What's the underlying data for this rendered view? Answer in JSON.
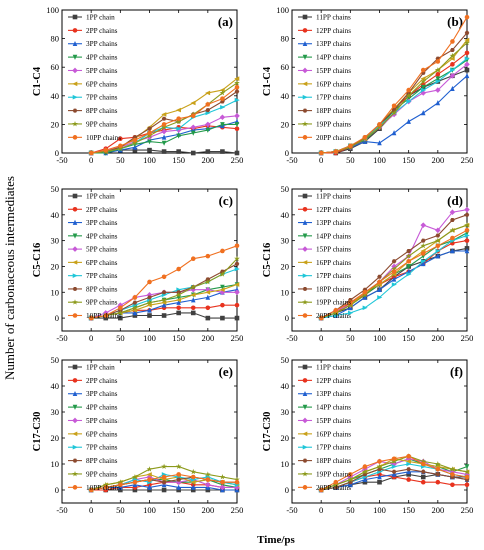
{
  "figure": {
    "shared_ylabel": "Number of carbonaceous intermediates",
    "shared_xlabel": "Time/ps"
  },
  "series_colors": [
    "#404040",
    "#e8321e",
    "#1f5fd0",
    "#239a4a",
    "#c75ad7",
    "#c9a11a",
    "#1fc6d8",
    "#8c4a2f",
    "#8c9a1c",
    "#f07020"
  ],
  "chart_data": [
    {
      "type": "line",
      "id": "a",
      "panel_label": "(a)",
      "ylabel": "C1-C4",
      "xlim": [
        -50,
        250
      ],
      "ylim": [
        0,
        100
      ],
      "xticks": [
        -50,
        0,
        50,
        100,
        150,
        200,
        250
      ],
      "yticks": [
        0,
        20,
        40,
        60,
        80,
        100
      ],
      "x": [
        0,
        25,
        50,
        75,
        100,
        125,
        150,
        175,
        200,
        225,
        250
      ],
      "series": [
        {
          "name": "1PP chain",
          "values": [
            0,
            1,
            2,
            2,
            2,
            1,
            1,
            0,
            1,
            1,
            0
          ]
        },
        {
          "name": "2PP chains",
          "values": [
            0,
            3,
            10,
            11,
            14,
            16,
            18,
            17,
            19,
            18,
            17
          ]
        },
        {
          "name": "3PP chains",
          "values": [
            0,
            0,
            2,
            4,
            9,
            11,
            13,
            16,
            17,
            19,
            22
          ]
        },
        {
          "name": "4PP chains",
          "values": [
            0,
            0,
            3,
            6,
            8,
            7,
            12,
            14,
            16,
            20,
            20
          ]
        },
        {
          "name": "5PP chains",
          "values": [
            0,
            2,
            4,
            8,
            11,
            15,
            16,
            18,
            20,
            25,
            26
          ]
        },
        {
          "name": "6PP chains",
          "values": [
            0,
            1,
            4,
            10,
            18,
            27,
            30,
            35,
            42,
            44,
            52
          ]
        },
        {
          "name": "7PP chains",
          "values": [
            0,
            1,
            3,
            7,
            14,
            18,
            17,
            25,
            28,
            32,
            37
          ]
        },
        {
          "name": "8PP chains",
          "values": [
            0,
            1,
            4,
            11,
            17,
            24,
            22,
            27,
            30,
            36,
            43
          ]
        },
        {
          "name": "9PP chains",
          "values": [
            0,
            1,
            3,
            7,
            12,
            18,
            22,
            27,
            34,
            42,
            49
          ]
        },
        {
          "name": "10PP chains",
          "values": [
            0,
            2,
            5,
            9,
            14,
            20,
            24,
            26,
            34,
            38,
            46
          ]
        }
      ]
    },
    {
      "type": "line",
      "id": "b",
      "panel_label": "(b)",
      "ylabel": "C1-C4",
      "xlim": [
        -50,
        250
      ],
      "ylim": [
        0,
        100
      ],
      "xticks": [
        -50,
        0,
        50,
        100,
        150,
        200,
        250
      ],
      "yticks": [
        0,
        20,
        40,
        60,
        80,
        100
      ],
      "x": [
        0,
        25,
        50,
        75,
        100,
        125,
        150,
        175,
        200,
        225,
        250
      ],
      "series": [
        {
          "name": "11PP chains",
          "values": [
            0,
            0,
            3,
            8,
            17,
            28,
            40,
            46,
            50,
            54,
            58
          ]
        },
        {
          "name": "12PP chains",
          "values": [
            0,
            0,
            4,
            9,
            18,
            31,
            40,
            48,
            55,
            62,
            70
          ]
        },
        {
          "name": "13PP chains",
          "values": [
            0,
            1,
            4,
            8,
            7,
            14,
            22,
            28,
            35,
            45,
            54
          ]
        },
        {
          "name": "14PP chains",
          "values": [
            0,
            1,
            5,
            9,
            18,
            30,
            38,
            46,
            52,
            58,
            65
          ]
        },
        {
          "name": "15PP chains",
          "values": [
            0,
            1,
            4,
            10,
            18,
            27,
            36,
            42,
            44,
            54,
            62
          ]
        },
        {
          "name": "16PP chains",
          "values": [
            0,
            1,
            5,
            10,
            20,
            31,
            42,
            52,
            58,
            66,
            79
          ]
        },
        {
          "name": "17PP chains",
          "values": [
            0,
            1,
            5,
            10,
            19,
            28,
            36,
            44,
            50,
            58,
            66
          ]
        },
        {
          "name": "18PP chains",
          "values": [
            0,
            1,
            4,
            11,
            20,
            30,
            42,
            56,
            66,
            72,
            84
          ]
        },
        {
          "name": "19PP chains",
          "values": [
            0,
            1,
            4,
            10,
            18,
            28,
            40,
            50,
            58,
            68,
            77
          ]
        },
        {
          "name": "20PP chains",
          "values": [
            0,
            1,
            5,
            11,
            20,
            33,
            44,
            58,
            64,
            78,
            95
          ]
        }
      ]
    },
    {
      "type": "line",
      "id": "c",
      "panel_label": "(c)",
      "ylabel": "C5-C16",
      "xlim": [
        -50,
        250
      ],
      "ylim": [
        -5,
        50
      ],
      "xticks": [
        -50,
        0,
        50,
        100,
        150,
        200,
        250
      ],
      "yticks": [
        0,
        10,
        20,
        30,
        40,
        50
      ],
      "x": [
        0,
        25,
        50,
        75,
        100,
        125,
        150,
        175,
        200,
        225,
        250
      ],
      "series": [
        {
          "name": "1PP chain",
          "values": [
            0,
            0,
            0,
            1,
            1,
            1,
            2,
            2,
            0,
            0,
            0
          ]
        },
        {
          "name": "2PP chains",
          "values": [
            0,
            1,
            2,
            3,
            3,
            4,
            4,
            4,
            4,
            5,
            5
          ]
        },
        {
          "name": "3PP chains",
          "values": [
            0,
            1,
            2,
            2,
            3,
            5,
            6,
            7,
            8,
            10,
            11
          ]
        },
        {
          "name": "4PP chains",
          "values": [
            0,
            1,
            2,
            4,
            6,
            7,
            8,
            9,
            11,
            12,
            13
          ]
        },
        {
          "name": "5PP chains",
          "values": [
            0,
            2,
            5,
            8,
            9,
            10,
            10,
            11,
            11,
            10,
            10
          ]
        },
        {
          "name": "6PP chains",
          "values": [
            0,
            1,
            2,
            3,
            5,
            6,
            7,
            9,
            10,
            11,
            13
          ]
        },
        {
          "name": "7PP chains",
          "values": [
            0,
            1,
            3,
            5,
            7,
            9,
            11,
            12,
            14,
            17,
            19
          ]
        },
        {
          "name": "8PP chains",
          "values": [
            0,
            1,
            3,
            6,
            8,
            10,
            10,
            12,
            15,
            18,
            21
          ]
        },
        {
          "name": "9PP chains",
          "values": [
            0,
            1,
            2,
            4,
            6,
            7,
            9,
            12,
            14,
            17,
            23
          ]
        },
        {
          "name": "10PP chains",
          "values": [
            0,
            1,
            4,
            8,
            14,
            16,
            19,
            23,
            24,
            26,
            28
          ]
        }
      ]
    },
    {
      "type": "line",
      "id": "d",
      "panel_label": "(d)",
      "ylabel": "C5-C16",
      "xlim": [
        -50,
        250
      ],
      "ylim": [
        -5,
        50
      ],
      "xticks": [
        -50,
        0,
        50,
        100,
        150,
        200,
        250
      ],
      "yticks": [
        0,
        10,
        20,
        30,
        40,
        50
      ],
      "x": [
        0,
        25,
        50,
        75,
        100,
        125,
        150,
        175,
        200,
        225,
        250
      ],
      "series": [
        {
          "name": "11PP chains",
          "values": [
            0,
            2,
            4,
            8,
            11,
            16,
            20,
            22,
            24,
            26,
            27
          ]
        },
        {
          "name": "12PP chains",
          "values": [
            0,
            2,
            6,
            9,
            13,
            16,
            18,
            21,
            26,
            29,
            30
          ]
        },
        {
          "name": "13PP chains",
          "values": [
            0,
            1,
            4,
            8,
            11,
            15,
            18,
            21,
            24,
            26,
            26
          ]
        },
        {
          "name": "14PP chains",
          "values": [
            0,
            2,
            5,
            9,
            13,
            17,
            20,
            24,
            28,
            30,
            33
          ]
        },
        {
          "name": "15PP chains",
          "values": [
            0,
            3,
            5,
            10,
            14,
            20,
            24,
            36,
            34,
            41,
            42
          ]
        },
        {
          "name": "16PP chains",
          "values": [
            0,
            2,
            5,
            10,
            13,
            17,
            22,
            26,
            30,
            34,
            36
          ]
        },
        {
          "name": "17PP chains",
          "values": [
            0,
            1,
            2,
            4,
            8,
            13,
            17,
            22,
            26,
            30,
            32
          ]
        },
        {
          "name": "18PP chains",
          "values": [
            0,
            3,
            7,
            11,
            16,
            22,
            26,
            30,
            32,
            38,
            40
          ]
        },
        {
          "name": "19PP chains",
          "values": [
            0,
            2,
            5,
            9,
            14,
            19,
            24,
            28,
            30,
            34,
            36
          ]
        },
        {
          "name": "20PP chains",
          "values": [
            0,
            3,
            6,
            10,
            14,
            18,
            22,
            25,
            28,
            31,
            34
          ]
        }
      ]
    },
    {
      "type": "line",
      "id": "e",
      "panel_label": "(e)",
      "ylabel": "C17-C30",
      "xlim": [
        -50,
        250
      ],
      "ylim": [
        -5,
        50
      ],
      "xticks": [
        -50,
        0,
        50,
        100,
        150,
        200,
        250
      ],
      "yticks": [
        0,
        10,
        20,
        30,
        40,
        50
      ],
      "x": [
        0,
        25,
        50,
        75,
        100,
        125,
        150,
        175,
        200,
        225,
        250
      ],
      "series": [
        {
          "name": "1PP chain",
          "values": [
            0,
            0,
            0,
            0,
            0,
            0,
            0,
            0,
            0,
            0,
            0
          ]
        },
        {
          "name": "2PP chains",
          "values": [
            0,
            0,
            1,
            1,
            2,
            3,
            3,
            2,
            2,
            1,
            1
          ]
        },
        {
          "name": "3PP chains",
          "values": [
            0,
            1,
            1,
            2,
            1,
            2,
            1,
            1,
            1,
            0,
            0
          ]
        },
        {
          "name": "4PP chains",
          "values": [
            0,
            1,
            2,
            3,
            4,
            4,
            3,
            3,
            4,
            2,
            1
          ]
        },
        {
          "name": "5PP chains",
          "values": [
            0,
            1,
            2,
            4,
            5,
            3,
            3,
            4,
            2,
            1,
            1
          ]
        },
        {
          "name": "6PP chains",
          "values": [
            0,
            2,
            3,
            5,
            6,
            4,
            5,
            3,
            4,
            3,
            2
          ]
        },
        {
          "name": "7PP chains",
          "values": [
            0,
            1,
            2,
            4,
            3,
            6,
            5,
            4,
            5,
            3,
            2
          ]
        },
        {
          "name": "8PP chains",
          "values": [
            0,
            1,
            2,
            3,
            4,
            3,
            4,
            5,
            4,
            3,
            3
          ]
        },
        {
          "name": "9PP chains",
          "values": [
            0,
            2,
            3,
            5,
            8,
            9,
            9,
            7,
            6,
            5,
            4
          ]
        },
        {
          "name": "10PP chains",
          "values": [
            0,
            1,
            2,
            3,
            4,
            5,
            6,
            5,
            4,
            3,
            3
          ]
        }
      ]
    },
    {
      "type": "line",
      "id": "f",
      "panel_label": "(f)",
      "ylabel": "C17-C30",
      "xlim": [
        -50,
        250
      ],
      "ylim": [
        -5,
        50
      ],
      "xticks": [
        -50,
        0,
        50,
        100,
        150,
        200,
        250
      ],
      "yticks": [
        0,
        10,
        20,
        30,
        40,
        50
      ],
      "x": [
        0,
        25,
        50,
        75,
        100,
        125,
        150,
        175,
        200,
        225,
        250
      ],
      "series": [
        {
          "name": "11PP chains",
          "values": [
            0,
            1,
            2,
            3,
            3,
            5,
            6,
            5,
            6,
            5,
            5
          ]
        },
        {
          "name": "12PP chains",
          "values": [
            0,
            1,
            3,
            5,
            6,
            5,
            4,
            3,
            3,
            2,
            2
          ]
        },
        {
          "name": "13PP chains",
          "values": [
            0,
            1,
            2,
            4,
            5,
            6,
            7,
            7,
            6,
            5,
            4
          ]
        },
        {
          "name": "14PP chains",
          "values": [
            0,
            2,
            4,
            6,
            8,
            10,
            12,
            10,
            9,
            7,
            9
          ]
        },
        {
          "name": "15PP chains",
          "values": [
            0,
            2,
            5,
            8,
            11,
            10,
            12,
            11,
            8,
            7,
            6
          ]
        },
        {
          "name": "16PP chains",
          "values": [
            0,
            2,
            4,
            7,
            9,
            12,
            11,
            10,
            9,
            8,
            7
          ]
        },
        {
          "name": "17PP chains",
          "values": [
            0,
            1,
            3,
            5,
            7,
            9,
            10,
            9,
            8,
            6,
            5
          ]
        },
        {
          "name": "18PP chains",
          "values": [
            0,
            1,
            3,
            6,
            8,
            7,
            8,
            7,
            6,
            5,
            4
          ]
        },
        {
          "name": "19PP chains",
          "values": [
            0,
            2,
            4,
            7,
            9,
            11,
            13,
            11,
            10,
            8,
            7
          ]
        },
        {
          "name": "20PP chains",
          "values": [
            0,
            3,
            6,
            9,
            11,
            12,
            13,
            10,
            8,
            6,
            5
          ]
        }
      ]
    }
  ]
}
